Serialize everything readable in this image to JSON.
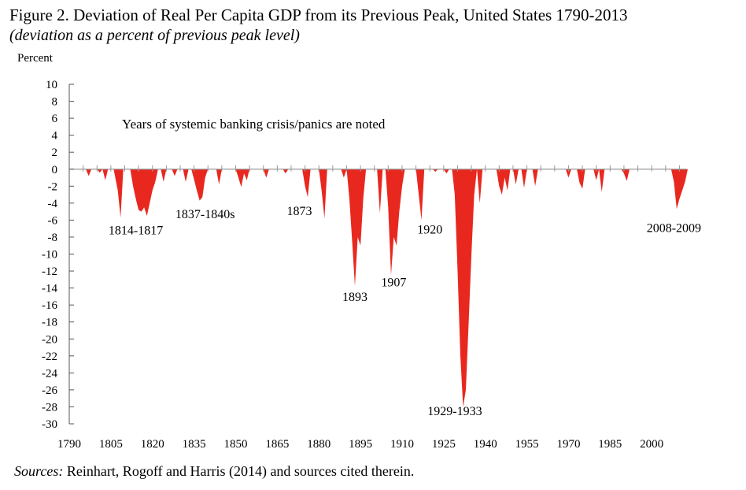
{
  "title": "Figure 2. Deviation of Real Per Capita GDP from its Previous Peak, United States 1790-2013",
  "subtitle": "(deviation as a percent of previous peak level)",
  "sources_label": "Sources:",
  "sources_text": " Reinhart, Rogoff and Harris (2014) and sources cited therein.",
  "chart_data": {
    "type": "area",
    "ylabel": "Percent",
    "xlabel": "",
    "xlim": [
      1790,
      2013
    ],
    "ylim": [
      -30,
      10
    ],
    "yticks": [
      10,
      8,
      6,
      4,
      2,
      0,
      -2,
      -4,
      -6,
      -8,
      -10,
      -12,
      -14,
      -16,
      -18,
      -20,
      -22,
      -24,
      -26,
      -28,
      -30
    ],
    "xticks": [
      1790,
      1805,
      1820,
      1835,
      1850,
      1865,
      1880,
      1895,
      1910,
      1925,
      1940,
      1955,
      1970,
      1985,
      2000
    ],
    "grid": false,
    "fill_color": "#e8281f",
    "annotation": "Years of systemic banking crisis/panics are noted",
    "labels": [
      {
        "text": "1814-1817",
        "x": 1814,
        "y": -7.7
      },
      {
        "text": "1837-1840s",
        "x": 1839,
        "y": -5.8
      },
      {
        "text": "1873",
        "x": 1873,
        "y": -5.4
      },
      {
        "text": "1893",
        "x": 1893,
        "y": -15.5
      },
      {
        "text": "1907",
        "x": 1907,
        "y": -13.8
      },
      {
        "text": "1920",
        "x": 1920,
        "y": -7.6
      },
      {
        "text": "1929-1933",
        "x": 1929,
        "y": -29.0
      },
      {
        "text": "2008-2009",
        "x": 2008,
        "y": -7.4
      }
    ],
    "series": [
      {
        "values": [
          [
            1796,
            0
          ],
          [
            1797,
            -0.8
          ],
          [
            1798,
            0
          ],
          [
            1800,
            0
          ],
          [
            1801,
            -0.4
          ],
          [
            1802,
            0
          ],
          [
            1802,
            0
          ],
          [
            1803,
            -1.3
          ],
          [
            1804,
            0
          ],
          [
            1806,
            0
          ],
          [
            1807.5,
            -2.5
          ],
          [
            1808.5,
            -5.7
          ],
          [
            1809.5,
            0
          ],
          [
            1812,
            0
          ],
          [
            1813,
            -2.0
          ],
          [
            1814,
            -3.5
          ],
          [
            1815,
            -4.8
          ],
          [
            1816,
            -5.0
          ],
          [
            1817,
            -4.5
          ],
          [
            1818,
            -5.5
          ],
          [
            1819,
            -4.0
          ],
          [
            1820,
            -2.5
          ],
          [
            1821,
            -1.5
          ],
          [
            1822,
            0
          ],
          [
            1823,
            0
          ],
          [
            1824,
            -1.5
          ],
          [
            1825,
            0
          ],
          [
            1827,
            0
          ],
          [
            1828,
            -0.8
          ],
          [
            1829,
            0
          ],
          [
            1831,
            0
          ],
          [
            1832,
            -1.5
          ],
          [
            1833,
            0
          ],
          [
            1834,
            0
          ],
          [
            1835,
            -1.2
          ],
          [
            1836,
            -2.5
          ],
          [
            1837,
            -3.7
          ],
          [
            1838,
            -3.3
          ],
          [
            1839,
            -1.0
          ],
          [
            1840,
            0
          ],
          [
            1843,
            0
          ],
          [
            1844,
            -1.8
          ],
          [
            1845,
            0
          ],
          [
            1850,
            0
          ],
          [
            1851,
            -1.0
          ],
          [
            1852,
            -2.1
          ],
          [
            1853,
            -0.5
          ],
          [
            1854,
            -1.3
          ],
          [
            1855,
            0
          ],
          [
            1860,
            0
          ],
          [
            1861,
            -1.0
          ],
          [
            1862,
            0
          ],
          [
            1867,
            0
          ],
          [
            1868,
            -0.5
          ],
          [
            1869,
            0
          ],
          [
            1874,
            0
          ],
          [
            1875,
            -2.0
          ],
          [
            1876,
            -3.3
          ],
          [
            1877,
            0
          ],
          [
            1880,
            0
          ],
          [
            1881,
            -2.5
          ],
          [
            1882,
            -5.8
          ],
          [
            1883,
            0
          ],
          [
            1888,
            0
          ],
          [
            1889,
            -1.0
          ],
          [
            1890,
            0
          ],
          [
            1890,
            0
          ],
          [
            1891,
            -3.5
          ],
          [
            1892,
            -8.5
          ],
          [
            1893,
            -13.8
          ],
          [
            1894,
            -8.0
          ],
          [
            1895,
            -9.0
          ],
          [
            1896,
            -3.5
          ],
          [
            1897,
            0
          ],
          [
            1901,
            0
          ],
          [
            1902,
            -5.2
          ],
          [
            1903,
            0
          ],
          [
            1904,
            0
          ],
          [
            1905,
            -4.5
          ],
          [
            1906,
            -12.5
          ],
          [
            1907,
            -8.0
          ],
          [
            1908,
            -9.0
          ],
          [
            1909,
            -5.0
          ],
          [
            1910,
            -2.0
          ],
          [
            1911,
            0
          ],
          [
            1915,
            0
          ],
          [
            1916,
            -3.0
          ],
          [
            1917,
            -6.0
          ],
          [
            1918,
            0
          ],
          [
            1921,
            0
          ],
          [
            1922,
            -0.3
          ],
          [
            1923,
            0
          ],
          [
            1925,
            0
          ],
          [
            1926,
            -0.5
          ],
          [
            1927,
            0
          ],
          [
            1928,
            0
          ],
          [
            1929,
            -3.0
          ],
          [
            1930,
            -12.0
          ],
          [
            1931,
            -22.0
          ],
          [
            1932,
            -28.0
          ],
          [
            1933,
            -26.0
          ],
          [
            1934,
            -18.0
          ],
          [
            1935,
            -10.0
          ],
          [
            1936,
            -3.0
          ],
          [
            1937,
            0
          ],
          [
            1937,
            0
          ],
          [
            1938,
            -4.0
          ],
          [
            1939,
            0
          ],
          [
            1944,
            0
          ],
          [
            1945,
            -2.0
          ],
          [
            1946,
            -3.0
          ],
          [
            1947,
            -1.0
          ],
          [
            1948,
            -2.5
          ],
          [
            1949,
            0
          ],
          [
            1950,
            0
          ],
          [
            1951,
            -1.8
          ],
          [
            1952,
            0
          ],
          [
            1953,
            0
          ],
          [
            1954,
            -2.2
          ],
          [
            1955,
            0
          ],
          [
            1957,
            0
          ],
          [
            1958,
            -2.0
          ],
          [
            1959,
            0
          ],
          [
            1969,
            0
          ],
          [
            1970,
            -1.0
          ],
          [
            1971,
            0
          ],
          [
            1973,
            0
          ],
          [
            1974,
            -1.6
          ],
          [
            1975,
            -2.3
          ],
          [
            1976,
            0
          ],
          [
            1979,
            0
          ],
          [
            1980,
            -1.3
          ],
          [
            1981,
            0
          ],
          [
            1981,
            0
          ],
          [
            1982,
            -2.7
          ],
          [
            1983,
            0
          ],
          [
            1989,
            0
          ],
          [
            1990,
            -0.5
          ],
          [
            1991,
            -1.4
          ],
          [
            1992,
            0
          ],
          [
            2007,
            0
          ],
          [
            2008,
            -1.5
          ],
          [
            2009,
            -4.7
          ],
          [
            2010,
            -3.5
          ],
          [
            2011,
            -2.5
          ],
          [
            2012,
            -1.5
          ],
          [
            2013,
            0
          ]
        ]
      }
    ]
  }
}
